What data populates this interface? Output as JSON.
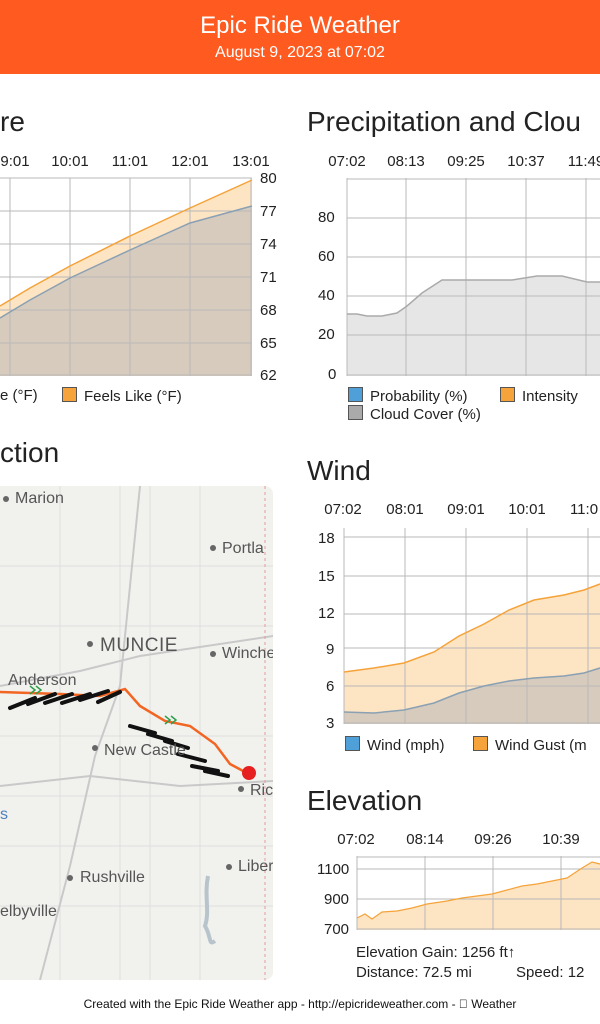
{
  "header": {
    "title": "Epic Ride Weather",
    "subtitle": "August 9, 2023 at 07:02"
  },
  "temperature": {
    "title": "re",
    "x_ticks": [
      "9:01",
      "10:01",
      "11:01",
      "12:01",
      "13:01"
    ],
    "y_ticks": [
      "80",
      "77",
      "74",
      "71",
      "68",
      "65",
      "62"
    ],
    "legend": [
      "e (°F)",
      "Feels Like (°F)"
    ],
    "colors": {
      "temp": "#d6cbbd",
      "feels": "#f5a33a"
    }
  },
  "precip": {
    "title": "Precipitation and Clou",
    "x_ticks": [
      "07:02",
      "08:13",
      "09:25",
      "10:37",
      "11:49"
    ],
    "y_ticks": [
      "80",
      "60",
      "40",
      "20",
      "0"
    ],
    "legend": [
      "Probability (%)",
      "Intensity",
      "Cloud Cover (%)"
    ],
    "colors": {
      "probability": "#4f9fd8",
      "intensity": "#f5a33a",
      "cloud": "#aaaaaa"
    }
  },
  "direction": {
    "title": "ction"
  },
  "map": {
    "cities": [
      "Marion",
      "Portla",
      "MUNCIE",
      "Winche",
      "Anderson",
      "New Castle",
      "Ric",
      "Rushville",
      "Liber",
      "elbyville",
      "s"
    ]
  },
  "wind": {
    "title": "Wind",
    "x_ticks": [
      "07:02",
      "08:01",
      "09:01",
      "10:01",
      "11:0"
    ],
    "y_ticks": [
      "18",
      "15",
      "12",
      "9",
      "6",
      "3"
    ],
    "legend": [
      "Wind (mph)",
      "Wind Gust (m"
    ],
    "colors": {
      "wind": "#4f9fd8",
      "gust": "#f5a33a"
    }
  },
  "elevation": {
    "title": "Elevation",
    "x_ticks": [
      "07:02",
      "08:14",
      "09:26",
      "10:39"
    ],
    "y_ticks": [
      "1100",
      "900",
      "700"
    ],
    "gain": "Elevation Gain: 1256 ft↑",
    "distance": "Distance: 72.5 mi",
    "speed": "Speed: 12"
  },
  "footer": "Created with the Epic Ride Weather app - http://epicrideweather.com -  Weather"
}
